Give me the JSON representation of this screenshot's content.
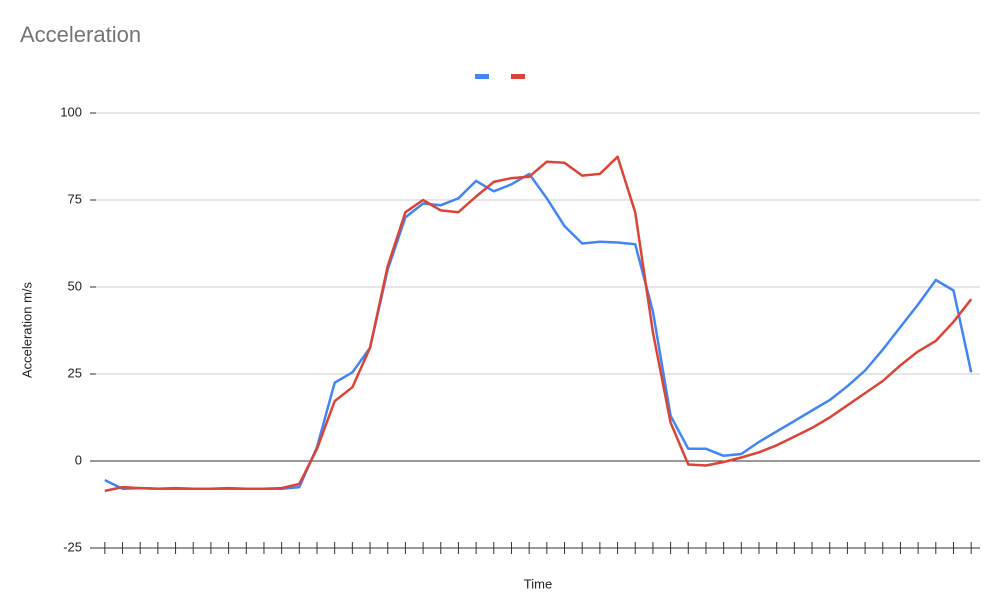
{
  "chart_data": {
    "type": "line",
    "title": "Acceleration",
    "x_label": "Time",
    "y_label": "Acceleration m/s",
    "categories": [
      null,
      null,
      null,
      null,
      null,
      null,
      null,
      null,
      null,
      null,
      null,
      null,
      null,
      null,
      null,
      null,
      null,
      null,
      null,
      null,
      null,
      null,
      null,
      null,
      null,
      null,
      null,
      null,
      null,
      null,
      null,
      null,
      null,
      null,
      null,
      null,
      null,
      null,
      null,
      null,
      null,
      null,
      null,
      null,
      null,
      null,
      null,
      null,
      null,
      null
    ],
    "series": [
      {
        "color": "#4285f4",
        "values": [
          -5.5,
          -8,
          -7.8,
          -8,
          -8,
          -8,
          -8,
          -8,
          -8,
          -8,
          -8,
          -7.5,
          4,
          22.5,
          25.5,
          32.5,
          55,
          70,
          74,
          73.5,
          75.5,
          80.5,
          77.5,
          79.5,
          82.5,
          75.5,
          67.5,
          62.5,
          63,
          62.8,
          62.3,
          43,
          13,
          3.5,
          3.5,
          1.5,
          2,
          5.5,
          8.5,
          11.5,
          14.5,
          17.5,
          21.5,
          26,
          32,
          38.5,
          45,
          52,
          49,
          25.5
        ]
      },
      {
        "color": "#db4437",
        "values": [
          -8.6,
          -7.5,
          -7.8,
          -8,
          -7.8,
          -8,
          -8,
          -7.8,
          -8,
          -8,
          -7.8,
          -6.6,
          3.5,
          17.2,
          21.2,
          32.5,
          56,
          71.5,
          75,
          72,
          71.5,
          76,
          80.2,
          81.3,
          81.7,
          86,
          85.7,
          82,
          82.5,
          87.4,
          71.5,
          37,
          11,
          -1,
          -1.3,
          -0.3,
          1,
          2.5,
          4.5,
          7,
          9.5,
          12.5,
          16,
          19.5,
          23,
          27.5,
          31.5,
          34.5,
          40,
          46.5
        ]
      }
    ],
    "ylim": [
      -25,
      100
    ],
    "yticks": [
      -25,
      0,
      25,
      50,
      75,
      100
    ],
    "grid": true,
    "legend": "top"
  }
}
